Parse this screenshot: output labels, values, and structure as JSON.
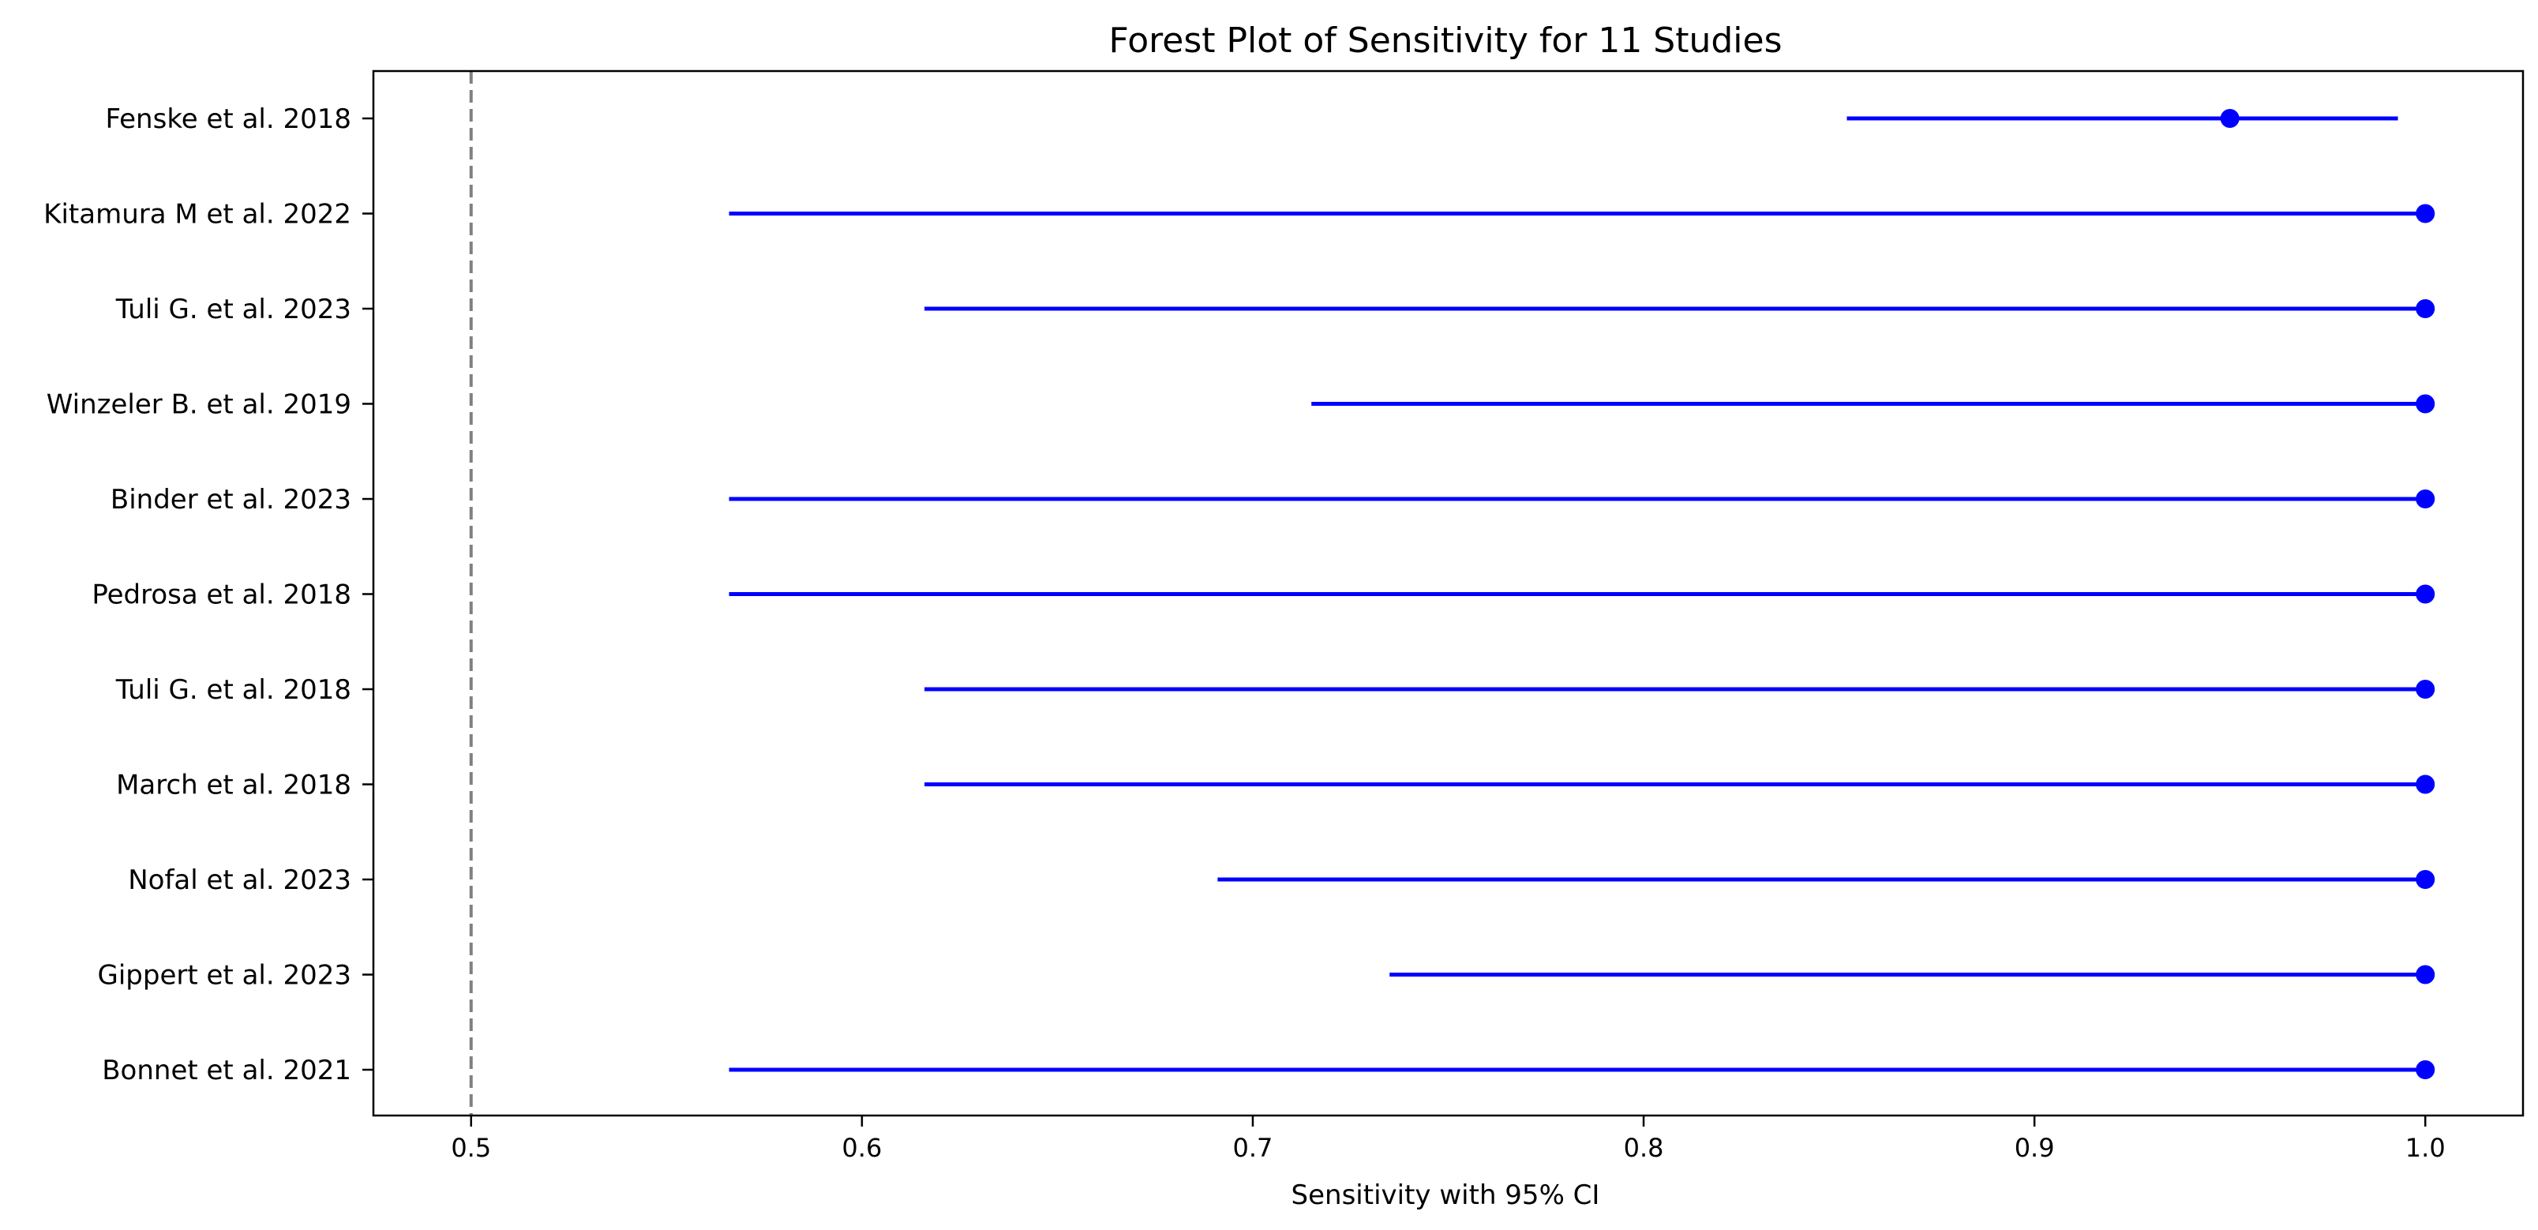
{
  "chart_data": {
    "type": "forest",
    "title": "Forest Plot of Sensitivity for 11 Studies",
    "xlabel": "Sensitivity with 95% CI",
    "ylabel": "",
    "xlim": [
      0.475,
      1.025
    ],
    "xticks": [
      0.5,
      0.6,
      0.7,
      0.8,
      0.9,
      1.0
    ],
    "xtick_labels": [
      "0.5",
      "0.6",
      "0.7",
      "0.8",
      "0.9",
      "1.0"
    ],
    "reference_line": 0.5,
    "grid": false,
    "series_color": "#0000ff",
    "reference_line_color": "#808080",
    "studies": [
      {
        "label": "Fenske et al. 2018",
        "estimate": 0.95,
        "ci_low": 0.852,
        "ci_high": 0.993
      },
      {
        "label": "Kitamura M et al. 2022",
        "estimate": 1.0,
        "ci_low": 0.566,
        "ci_high": 1.0
      },
      {
        "label": "Tuli G. et al. 2023",
        "estimate": 1.0,
        "ci_low": 0.616,
        "ci_high": 1.0
      },
      {
        "label": "Winzeler B. et al. 2019",
        "estimate": 1.0,
        "ci_low": 0.715,
        "ci_high": 1.0
      },
      {
        "label": "Binder et al. 2023",
        "estimate": 1.0,
        "ci_low": 0.566,
        "ci_high": 1.0
      },
      {
        "label": "Pedrosa et al. 2018",
        "estimate": 1.0,
        "ci_low": 0.566,
        "ci_high": 1.0
      },
      {
        "label": "Tuli G. et al. 2018",
        "estimate": 1.0,
        "ci_low": 0.616,
        "ci_high": 1.0
      },
      {
        "label": "March et al. 2018",
        "estimate": 1.0,
        "ci_low": 0.616,
        "ci_high": 1.0
      },
      {
        "label": "Nofal et al. 2023",
        "estimate": 1.0,
        "ci_low": 0.691,
        "ci_high": 1.0
      },
      {
        "label": "Gippert et al. 2023",
        "estimate": 1.0,
        "ci_low": 0.735,
        "ci_high": 1.0
      },
      {
        "label": "Bonnet et al. 2021",
        "estimate": 1.0,
        "ci_low": 0.566,
        "ci_high": 1.0
      }
    ]
  }
}
